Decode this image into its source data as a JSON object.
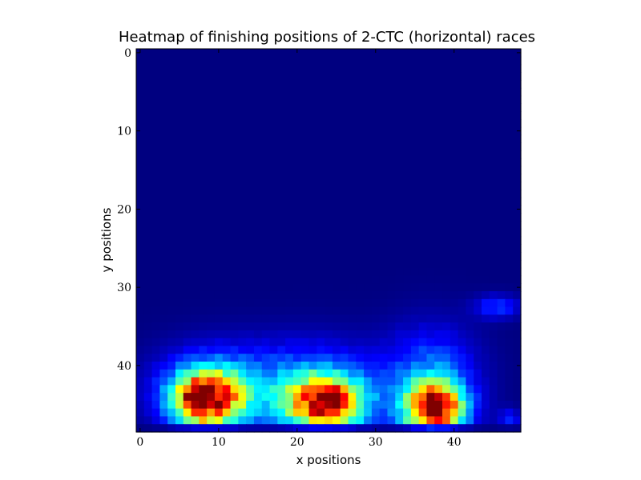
{
  "chart_data": {
    "type": "heatmap",
    "title": "Heatmap of finishing positions of 2-CTC (horizontal) races",
    "xlabel": "x positions",
    "ylabel": "y positions",
    "xlim": [
      0,
      49
    ],
    "ylim": [
      0,
      49
    ],
    "y_axis_inverted": true,
    "grid": false,
    "colormap": "jet",
    "x_ticks": [
      "0",
      "10",
      "20",
      "30",
      "40"
    ],
    "y_ticks": [
      "0",
      "10",
      "20",
      "30",
      "40"
    ],
    "blobs": [
      {
        "cx": 8.5,
        "cy": 44.5,
        "sx": 3.2,
        "sy": 2.6,
        "peak": 0.82
      },
      {
        "cx": 7.0,
        "cy": 43.5,
        "sx": 1.2,
        "sy": 0.9,
        "peak": 0.25
      },
      {
        "cx": 10.0,
        "cy": 42.5,
        "sx": 5.5,
        "sy": 3.5,
        "peak": 0.22
      },
      {
        "cx": 23.5,
        "cy": 45.0,
        "sx": 3.5,
        "sy": 2.5,
        "peak": 0.78
      },
      {
        "cx": 24.5,
        "cy": 44.0,
        "sx": 1.0,
        "sy": 1.0,
        "peak": 0.25
      },
      {
        "cx": 22.0,
        "cy": 42.5,
        "sx": 6.0,
        "sy": 3.8,
        "peak": 0.22
      },
      {
        "cx": 37.5,
        "cy": 45.5,
        "sx": 2.6,
        "sy": 2.3,
        "peak": 0.85
      },
      {
        "cx": 37.5,
        "cy": 46.0,
        "sx": 0.9,
        "sy": 0.8,
        "peak": 0.25
      },
      {
        "cx": 37.0,
        "cy": 42.0,
        "sx": 4.0,
        "sy": 4.5,
        "peak": 0.25
      },
      {
        "cx": 45.5,
        "cy": 32.5,
        "sx": 2.0,
        "sy": 1.0,
        "peak": 0.18
      },
      {
        "cx": 47.0,
        "cy": 47.0,
        "sx": 1.0,
        "sy": 1.0,
        "peak": 0.14
      }
    ]
  }
}
